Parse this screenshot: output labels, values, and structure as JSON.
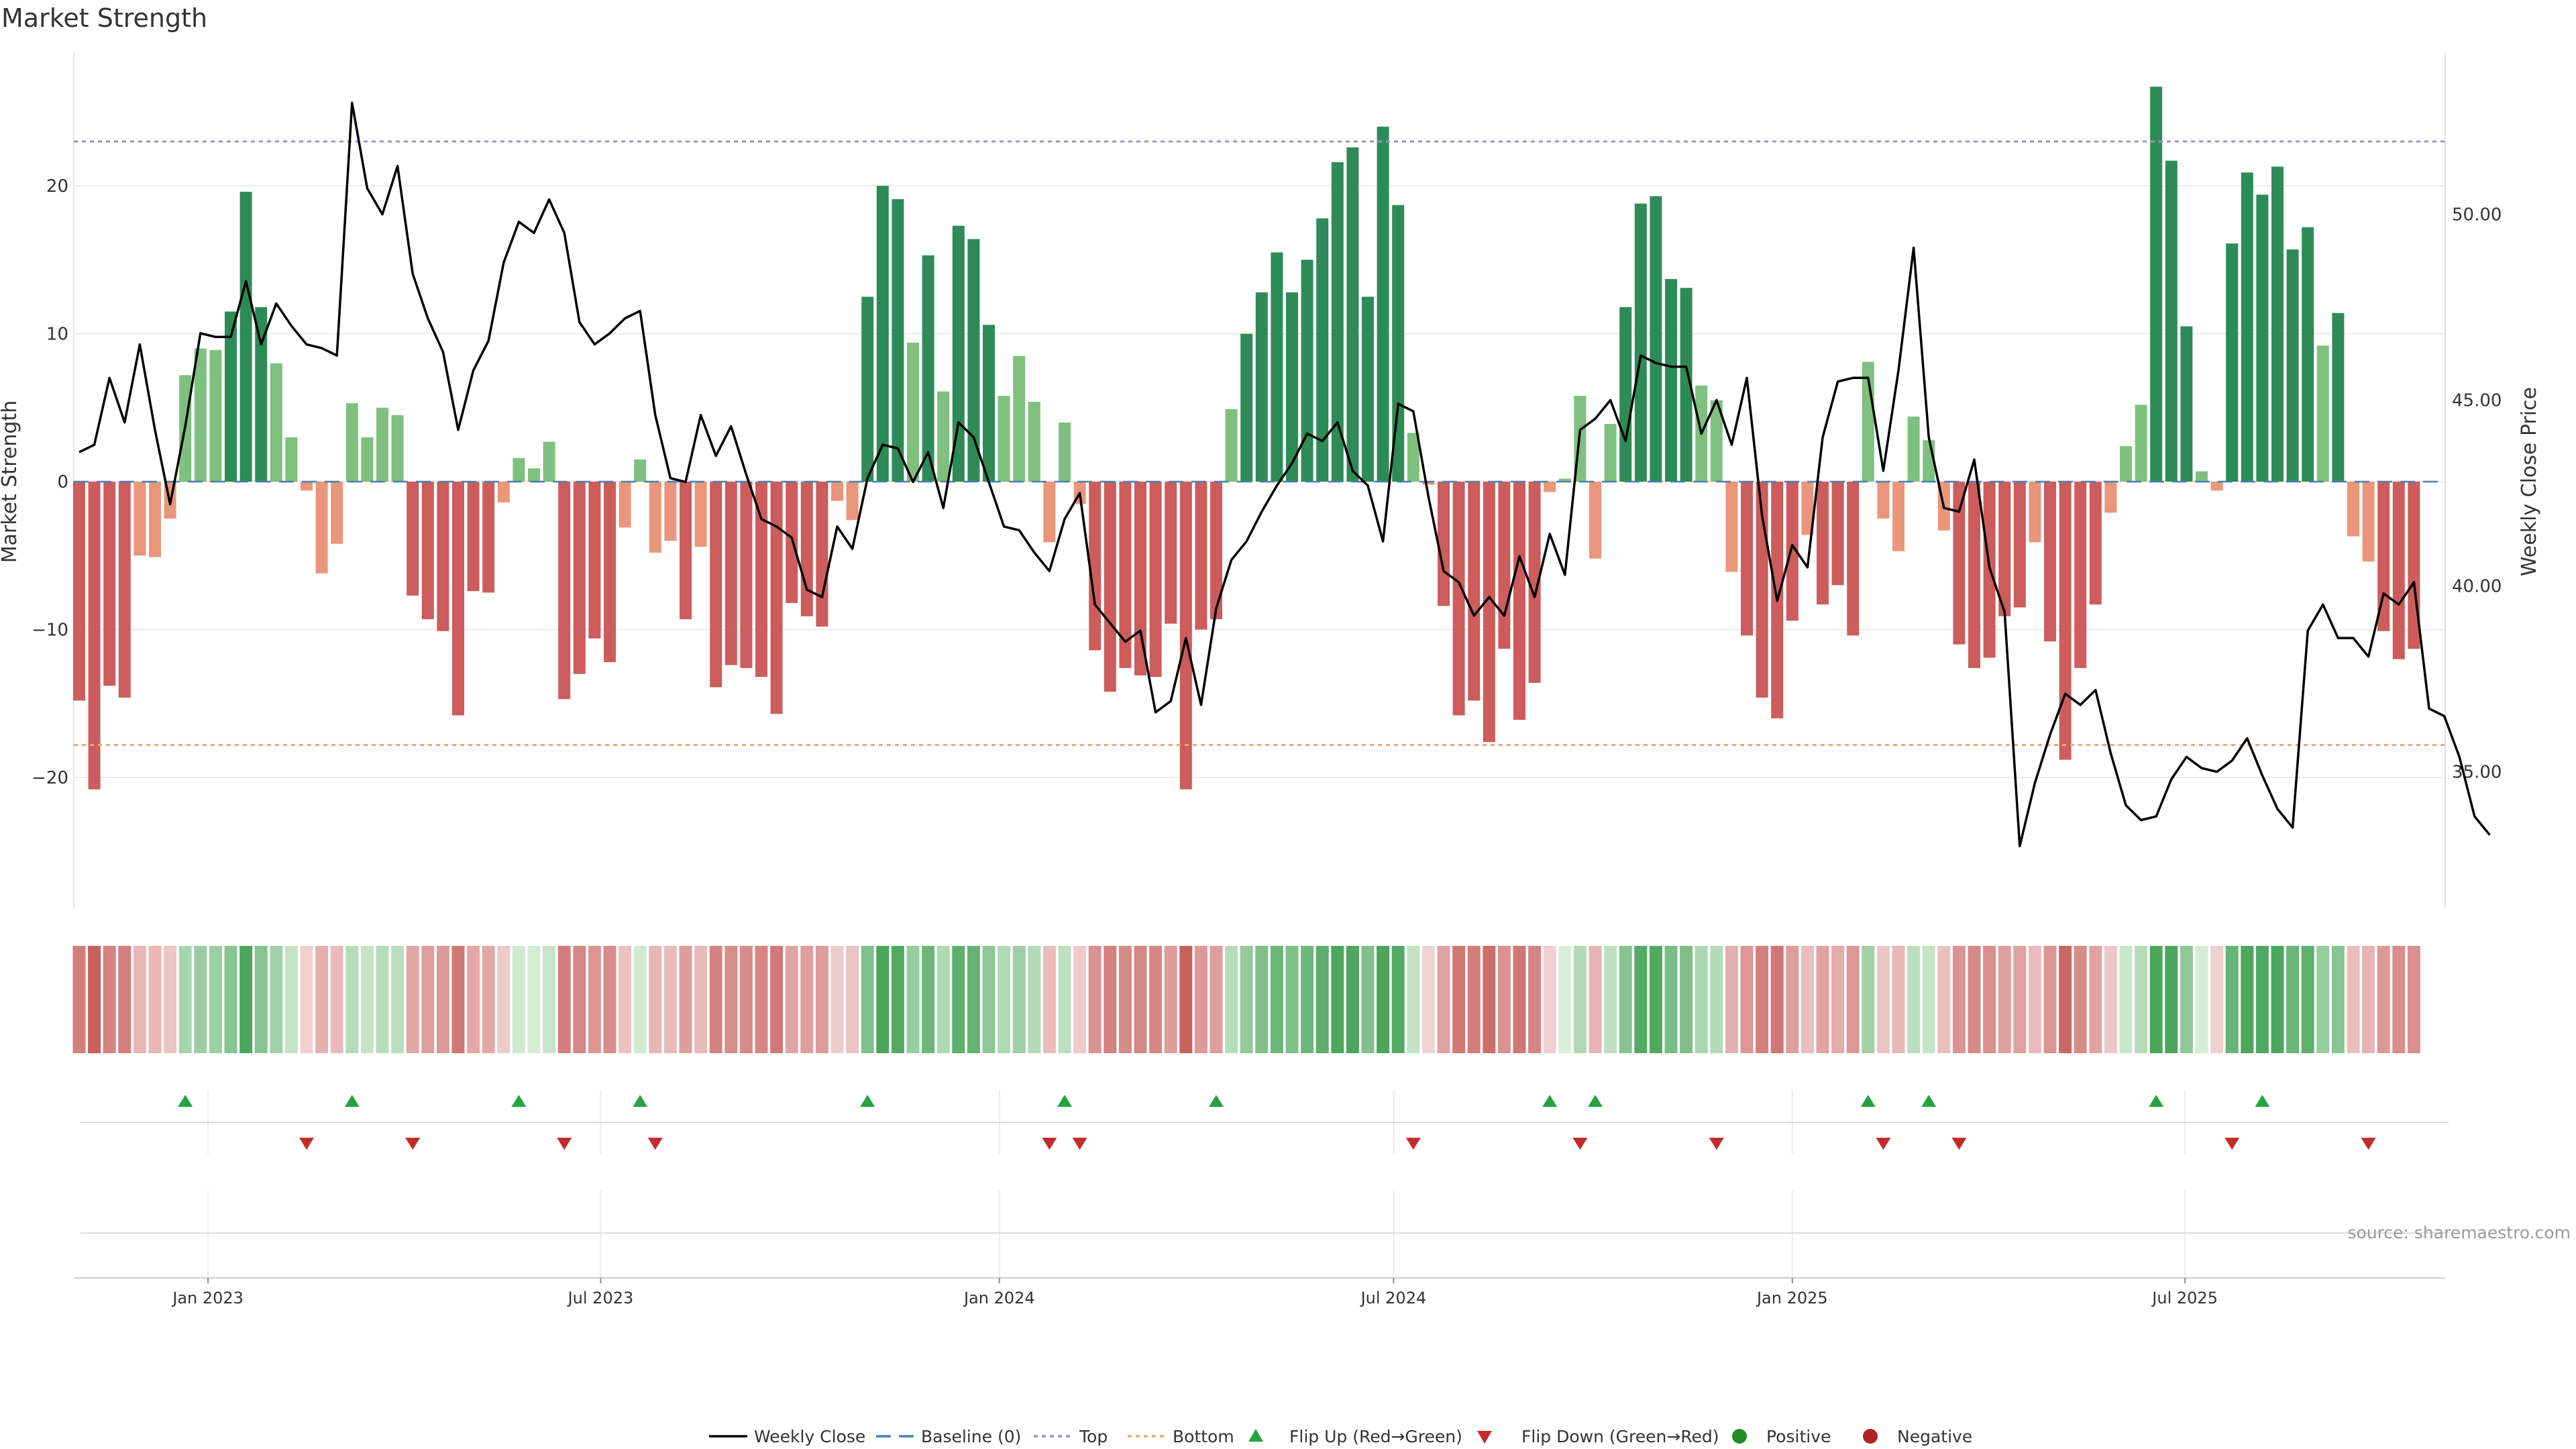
{
  "chart_data": {
    "type": "bar",
    "title": "Market Strength",
    "ylabel": "Market Strength",
    "y2label": "Weekly Close Price",
    "ylim": [
      -29,
      28
    ],
    "y2lim": [
      31,
      53.5
    ],
    "yticks": [
      -20,
      -10,
      0,
      10,
      20
    ],
    "y2ticks": [
      "35.00",
      "40.00",
      "45.00",
      "50.00"
    ],
    "top_line": 23,
    "bottom_line": -17.8,
    "x_start": "2022-11-06",
    "week_count": 158,
    "xticks": [
      {
        "label": "Jan 2023",
        "week": 8.5
      },
      {
        "label": "Jul 2023",
        "week": 34.4
      },
      {
        "label": "Jan 2024",
        "week": 60.7
      },
      {
        "label": "Jul 2024",
        "week": 86.7
      },
      {
        "label": "Jan 2025",
        "week": 113.0
      },
      {
        "label": "Jul 2025",
        "week": 138.9
      }
    ],
    "strength": [
      -14.8,
      -20.8,
      -13.8,
      -14.6,
      -5.0,
      -5.1,
      -2.5,
      7.2,
      9.0,
      8.9,
      11.5,
      19.6,
      11.8,
      8.0,
      3.0,
      -0.6,
      -6.2,
      -4.2,
      5.3,
      3.0,
      5.0,
      4.5,
      -7.7,
      -9.3,
      -10.1,
      -15.8,
      -7.4,
      -7.5,
      -1.4,
      1.6,
      0.9,
      2.7,
      -14.7,
      -13.0,
      -10.6,
      -12.2,
      -3.1,
      1.5,
      -4.8,
      -4.0,
      -9.3,
      -4.4,
      -13.9,
      -12.4,
      -12.6,
      -13.2,
      -15.7,
      -8.2,
      -9.1,
      -9.8,
      -1.3,
      -2.6,
      12.5,
      20.0,
      19.1,
      9.4,
      15.3,
      6.1,
      17.3,
      16.4,
      10.6,
      5.8,
      8.5,
      5.4,
      -4.1,
      4.0,
      -1.5,
      -11.4,
      -14.2,
      -12.6,
      -13.1,
      -13.2,
      -9.6,
      -20.8,
      -10.0,
      -9.3,
      4.9,
      10.0,
      12.8,
      15.5,
      12.8,
      15.0,
      17.8,
      21.6,
      22.6,
      12.5,
      24.0,
      18.7,
      3.3,
      -0.2,
      -8.4,
      -15.8,
      -14.8,
      -17.6,
      -11.3,
      -16.1,
      -13.6,
      -0.7,
      0.2,
      5.8,
      -5.2,
      3.9,
      11.8,
      18.8,
      19.3,
      13.7,
      13.1,
      6.5,
      5.5,
      -6.1,
      -10.4,
      -14.6,
      -16.0,
      -9.4,
      -3.6,
      -8.3,
      -7.0,
      -10.4,
      8.1,
      -2.5,
      -4.7,
      4.4,
      2.8,
      -3.3,
      -11.0,
      -12.6,
      -11.9,
      -9.1,
      -8.5,
      -4.1,
      -10.8,
      -18.8,
      -12.6,
      -8.3,
      -2.1,
      2.4,
      5.2,
      26.7,
      21.7,
      10.5,
      0.7,
      -0.6,
      16.1,
      20.9,
      19.4,
      21.3,
      15.7,
      17.2,
      9.2,
      11.4,
      -3.7,
      -5.4,
      -10.1,
      -12.0,
      -11.3
    ],
    "close": [
      43.6,
      43.8,
      45.6,
      44.4,
      46.5,
      44.2,
      42.2,
      44.3,
      46.8,
      46.7,
      46.7,
      48.2,
      46.5,
      47.6,
      47.0,
      46.5,
      46.4,
      46.2,
      53.0,
      50.7,
      50.0,
      51.3,
      48.4,
      47.2,
      46.3,
      44.2,
      45.8,
      46.6,
      48.7,
      49.8,
      49.5,
      50.4,
      49.5,
      47.1,
      46.5,
      46.8,
      47.2,
      47.4,
      44.6,
      42.9,
      42.8,
      44.6,
      43.5,
      44.3,
      43.0,
      41.8,
      41.6,
      41.3,
      39.9,
      39.7,
      41.6,
      41.0,
      42.9,
      43.8,
      43.7,
      42.8,
      43.6,
      42.1,
      44.4,
      44.0,
      42.8,
      41.6,
      41.5,
      40.9,
      40.4,
      41.8,
      42.5,
      39.5,
      39.0,
      38.5,
      38.8,
      36.6,
      36.9,
      38.6,
      36.8,
      39.4,
      40.7,
      41.2,
      42.0,
      42.7,
      43.3,
      44.1,
      43.9,
      44.4,
      43.1,
      42.7,
      41.2,
      44.9,
      44.7,
      42.4,
      40.4,
      40.1,
      39.2,
      39.7,
      39.2,
      40.8,
      39.7,
      41.4,
      40.3,
      44.2,
      44.5,
      45.0,
      43.9,
      46.2,
      46.0,
      45.9,
      45.9,
      44.1,
      45.0,
      43.8,
      45.6,
      41.9,
      39.6,
      41.1,
      40.5,
      44.0,
      45.5,
      45.6,
      45.6,
      43.1,
      45.8,
      49.1,
      44.0,
      42.1,
      42.0,
      43.4,
      40.5,
      39.3,
      33.0,
      34.7,
      36.0,
      37.1,
      36.8,
      37.2,
      35.5,
      34.1,
      33.7,
      33.8,
      34.8,
      35.4,
      35.1,
      35.0,
      35.3,
      35.9,
      34.9,
      34.0,
      33.5,
      38.8,
      39.5,
      38.6,
      38.6,
      38.1,
      39.8,
      39.5,
      40.1,
      36.7,
      36.5,
      35.4,
      33.8,
      33.3
    ],
    "flip_up_weeks": [
      7,
      18,
      29,
      37,
      52,
      65,
      75,
      97,
      100,
      118,
      122,
      137,
      144
    ],
    "flip_down_weeks": [
      15,
      22,
      32,
      38,
      64,
      66,
      88,
      99,
      108,
      119,
      124,
      142,
      151
    ],
    "legend": [
      "Weekly Close",
      "Baseline (0)",
      "Top",
      "Bottom",
      "Flip Up (Red→Green)",
      "Flip Down (Green→Red)",
      "Positive",
      "Negative"
    ],
    "source": "source: sharemaestro.com"
  },
  "colors": {
    "strong_up": "#2e8b57",
    "mild_up": "#7fc07f",
    "strong_down": "#cd5c5c",
    "mild_down": "#e9967a",
    "top_line": "#9a8fd3",
    "bottom_line": "#f2a470",
    "baseline": "#4a7fb0",
    "price_line": "#000000",
    "flip_up": "#27a243",
    "flip_down": "#c42b2b",
    "positive": "#228b22",
    "negative": "#b22222"
  }
}
